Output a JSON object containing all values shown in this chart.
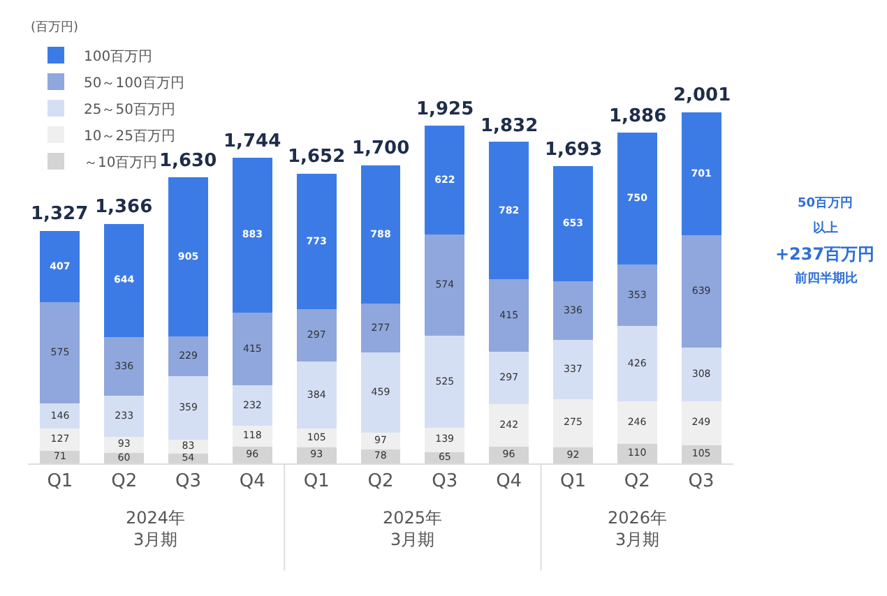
{
  "chart_data": {
    "type": "bar",
    "stacked": true,
    "data_labels": true,
    "categories": [
      "Q1",
      "Q2",
      "Q3",
      "Q4",
      "Q1",
      "Q2",
      "Q3",
      "Q4",
      "Q1",
      "Q2",
      "Q3"
    ],
    "series": [
      {
        "name": "～10百万円",
        "color": "#d4d4d4",
        "values": [
          71,
          60,
          54,
          96,
          93,
          78,
          65,
          96,
          92,
          110,
          105
        ]
      },
      {
        "name": "10～25百万円",
        "color": "#efefef",
        "values": [
          127,
          93,
          83,
          118,
          105,
          97,
          139,
          242,
          275,
          246,
          249
        ]
      },
      {
        "name": "25～50百万円",
        "color": "#d5dff4",
        "values": [
          146,
          233,
          359,
          232,
          384,
          459,
          525,
          297,
          337,
          426,
          308
        ]
      },
      {
        "name": "50～100百万円",
        "color": "#8fa7dc",
        "values": [
          575,
          336,
          229,
          415,
          297,
          277,
          574,
          415,
          336,
          353,
          639
        ]
      },
      {
        "name": "100百万円",
        "color": "#3c7be6",
        "values": [
          407,
          644,
          905,
          883,
          773,
          788,
          622,
          782,
          653,
          750,
          701
        ]
      }
    ],
    "totals": [
      "1,327",
      "1,366",
      "1,630",
      "1,744",
      "1,652",
      "1,700",
      "1,925",
      "1,832",
      "1,693",
      "1,886",
      "2,001"
    ],
    "legend": "top left",
    "annotations": [
      "2024年\n3月期",
      "2025年\n3月期",
      "2026年\n3月期",
      "50百万円",
      "以上",
      "+237百万円",
      "前四半期比",
      "(百万円)"
    ]
  }
}
